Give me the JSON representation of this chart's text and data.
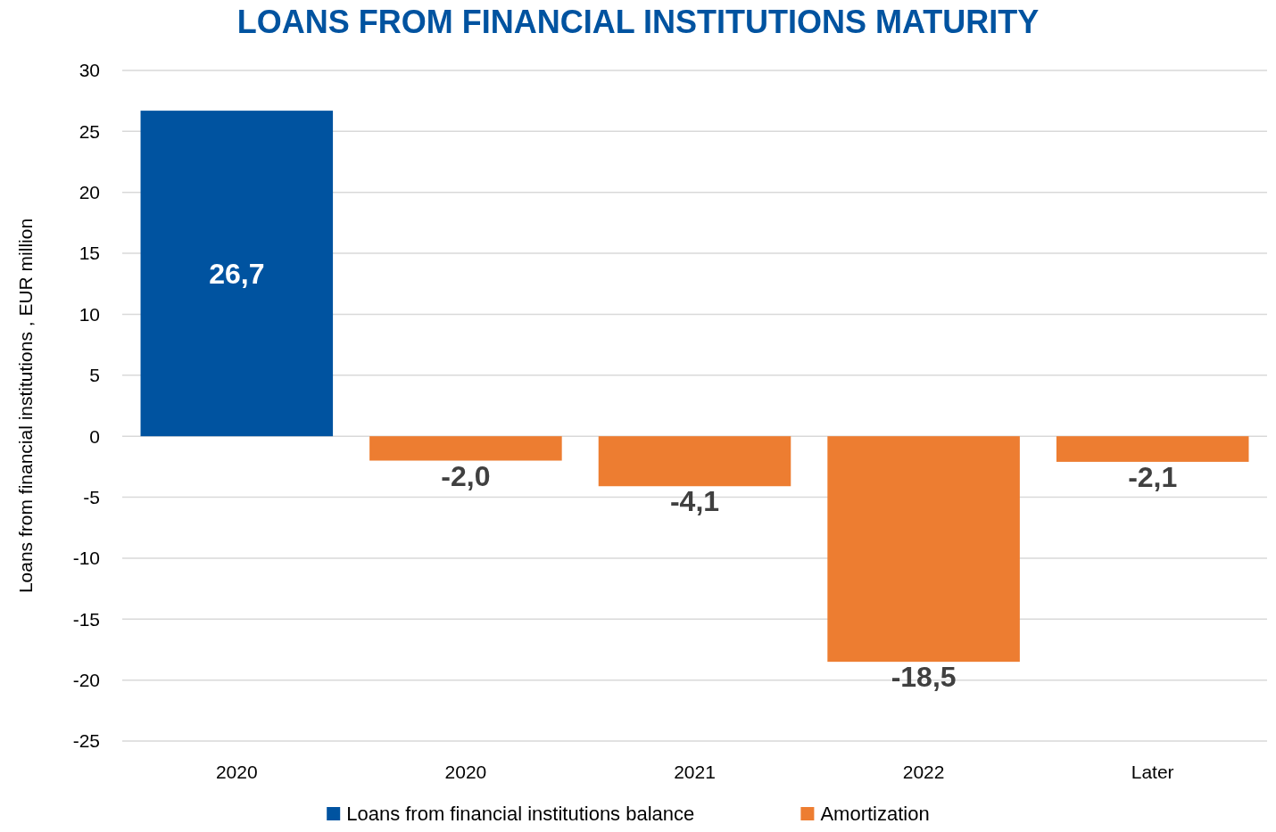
{
  "chart_data": {
    "type": "bar",
    "title": "LOANS FROM FINANCIAL INSTITUTIONS MATURITY",
    "ylabel": "Loans from financial institutions , EUR million",
    "categories": [
      "2020",
      "2020",
      "2021",
      "2022",
      "Later"
    ],
    "series": [
      {
        "name": "Loans from financial institutions balance",
        "color": "#0053a0",
        "values": [
          26.7,
          null,
          null,
          null,
          null
        ],
        "value_labels": [
          "26,7",
          null,
          null,
          null,
          null
        ]
      },
      {
        "name": "Amortization",
        "color": "#ed7d31",
        "values": [
          null,
          -2.0,
          -4.1,
          -18.5,
          -2.1
        ],
        "value_labels": [
          null,
          "-2,0",
          "-4,1",
          "-18,5",
          "-2,1"
        ]
      }
    ],
    "stacked": true,
    "ylim": [
      -25,
      30
    ],
    "yticks": [
      -25,
      -20,
      -15,
      -10,
      -5,
      0,
      5,
      10,
      15,
      20,
      25,
      30
    ],
    "grid": "y",
    "legend": "bottom"
  }
}
